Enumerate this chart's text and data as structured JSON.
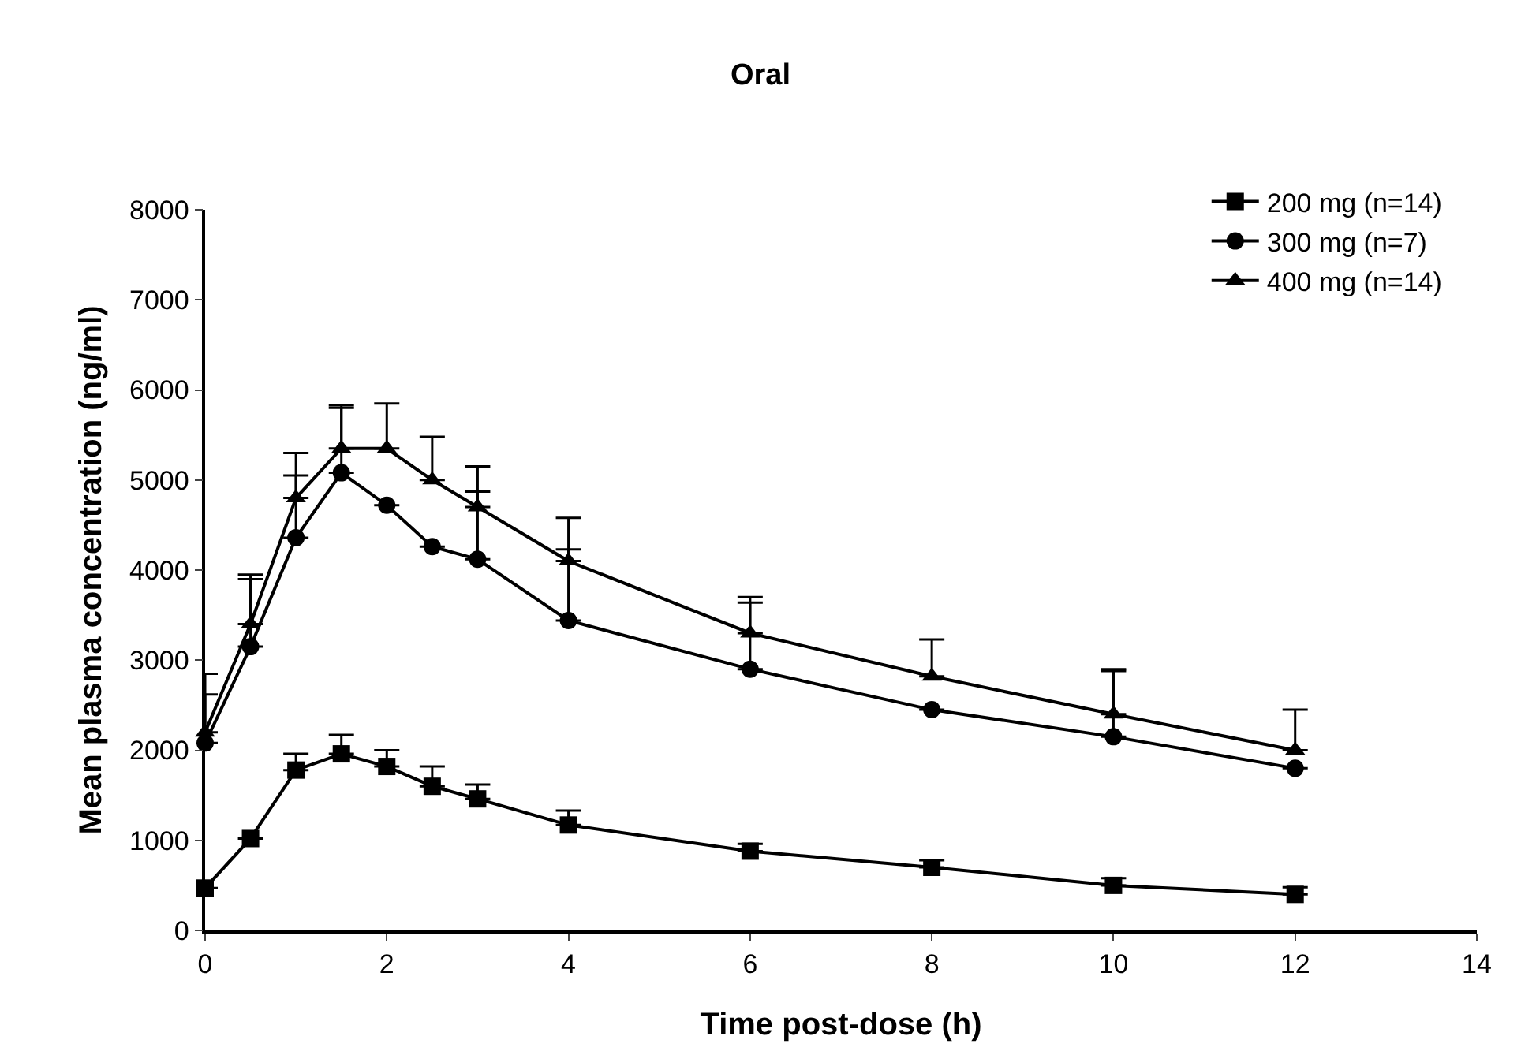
{
  "chart_data": {
    "type": "line",
    "title": "Oral",
    "xlabel": "Time post-dose (h)",
    "ylabel": "Mean plasma concentration (ng/ml)",
    "x": [
      0,
      0.5,
      1,
      1.5,
      2,
      2.5,
      3,
      4,
      6,
      8,
      10,
      12
    ],
    "xlim": [
      0,
      14
    ],
    "xticks": [
      0,
      2,
      4,
      6,
      8,
      10,
      12,
      14
    ],
    "ylim": [
      0,
      8000
    ],
    "yticks": [
      0,
      1000,
      2000,
      3000,
      4000,
      5000,
      6000,
      7000,
      8000
    ],
    "legend": "top right",
    "series": [
      {
        "name": "200 mg (n=14)",
        "color": "#000000",
        "marker": "square",
        "values": [
          470,
          1020,
          1780,
          1960,
          1820,
          1600,
          1460,
          1170,
          880,
          700,
          500,
          400
        ],
        "errors": [
          null,
          null,
          [
            1780,
            1960
          ],
          [
            1960,
            2170
          ],
          [
            1820,
            2000
          ],
          [
            1600,
            1820
          ],
          [
            1460,
            1620
          ],
          [
            1170,
            1330
          ],
          [
            880,
            960
          ],
          [
            700,
            780
          ],
          [
            500,
            580
          ],
          [
            400,
            480
          ]
        ]
      },
      {
        "name": "300 mg (n=7)",
        "color": "#000000",
        "marker": "circle",
        "values": [
          2080,
          3150,
          4360,
          5080,
          4720,
          4260,
          4120,
          3440,
          2900,
          2450,
          2150,
          1800
        ],
        "errors": [
          [
            2080,
            2620
          ],
          [
            3150,
            3900
          ],
          [
            4360,
            5050
          ],
          [
            5080,
            5800
          ],
          null,
          null,
          [
            4120,
            4870
          ],
          [
            3440,
            4230
          ],
          [
            2900,
            3640
          ],
          null,
          [
            2150,
            2880
          ],
          null
        ]
      },
      {
        "name": "400 mg (n=14)",
        "color": "#000000",
        "marker": "triangle",
        "values": [
          2200,
          3400,
          4800,
          5350,
          5350,
          5000,
          4700,
          4100,
          3300,
          2820,
          2400,
          2000
        ],
        "errors": [
          [
            2200,
            2850
          ],
          [
            3400,
            3950
          ],
          [
            4800,
            5300
          ],
          [
            5350,
            5830
          ],
          [
            5350,
            5850
          ],
          [
            5000,
            5480
          ],
          [
            4700,
            5150
          ],
          [
            4100,
            4580
          ],
          [
            3300,
            3700
          ],
          [
            2820,
            3230
          ],
          [
            2400,
            2900
          ],
          [
            2000,
            2450
          ]
        ]
      }
    ]
  }
}
